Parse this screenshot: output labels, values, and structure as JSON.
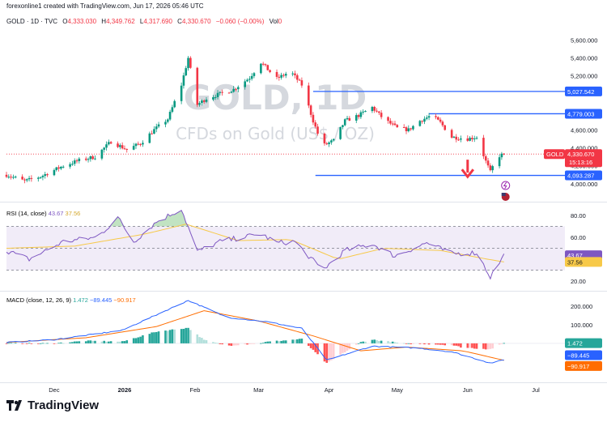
{
  "header": {
    "credit": "forexonline1 created with TradingView.com, Jun 17, 2026 05:46 UTC",
    "symbol": "GOLD · 1D · TVC",
    "open_label": "O",
    "open": "4,333.030",
    "high_label": "H",
    "high": "4,349.762",
    "low_label": "L",
    "low": "4,317.690",
    "close_label": "C",
    "close": "4,330.670",
    "change": "−0.060 (−0.00%)",
    "volume_label": "Vol",
    "volume": "0"
  },
  "watermark": {
    "title": "GOLD, 1D",
    "subtitle": "CFDs on Gold (US$ / OZ)"
  },
  "brand": {
    "logo_text": "TradingView"
  },
  "colors": {
    "up": "#089981",
    "down": "#f23645",
    "level": "#2962ff",
    "rsi": "#7e57c2",
    "rsi_ma": "#f7c948",
    "macd": "#2962ff",
    "signal": "#ff6d00",
    "badge_gold": "#f23645"
  },
  "chart_data": [
    {
      "type": "candlestick",
      "title": "GOLD, 1D",
      "x_axis": {
        "type": "date",
        "range": [
          "2025-11-10",
          "2026-07-01"
        ],
        "tick_labels": [
          {
            "date": "2025-12-01",
            "label": "Dec"
          },
          {
            "date": "2026-01-01",
            "label": "2026"
          },
          {
            "date": "2026-02-01",
            "label": "Feb"
          },
          {
            "date": "2026-03-01",
            "label": "Mar"
          },
          {
            "date": "2026-04-01",
            "label": "Apr"
          },
          {
            "date": "2026-05-01",
            "label": "May"
          },
          {
            "date": "2026-06-01",
            "label": "Jun"
          },
          {
            "date": "2026-07-01",
            "label": "Jul"
          }
        ]
      },
      "y_axis": {
        "range": [
          3900,
          5720
        ],
        "ticks": [
          {
            "value": 4000,
            "label": "4,000.000"
          },
          {
            "value": 4200,
            "label": "4,200.000"
          },
          {
            "value": 4400,
            "label": "4,400.000"
          },
          {
            "value": 4600,
            "label": "4,600.000"
          },
          {
            "value": 5200,
            "label": "5,200.000"
          },
          {
            "value": 5400,
            "label": "5,400.000"
          },
          {
            "value": 5600,
            "label": "5,600.000"
          }
        ]
      },
      "anchors": [
        [
          "2025-11-10",
          4100
        ],
        [
          "2025-11-18",
          4030
        ],
        [
          "2025-11-25",
          4080
        ],
        [
          "2025-12-05",
          4200
        ],
        [
          "2025-12-12",
          4260
        ],
        [
          "2025-12-19",
          4300
        ],
        [
          "2025-12-26",
          4470
        ],
        [
          "2026-01-02",
          4380
        ],
        [
          "2026-01-08",
          4450
        ],
        [
          "2026-01-14",
          4600
        ],
        [
          "2026-01-20",
          4720
        ],
        [
          "2026-01-26",
          5100
        ],
        [
          "2026-01-29",
          5400
        ],
        [
          "2026-02-02",
          4880
        ],
        [
          "2026-02-06",
          4950
        ],
        [
          "2026-02-12",
          5000
        ],
        [
          "2026-02-18",
          5050
        ],
        [
          "2026-02-25",
          5180
        ],
        [
          "2026-03-02",
          5350
        ],
        [
          "2026-03-09",
          5170
        ],
        [
          "2026-03-15",
          5250
        ],
        [
          "2026-03-20",
          5100
        ],
        [
          "2026-03-25",
          4700
        ],
        [
          "2026-03-29",
          4420
        ],
        [
          "2026-04-03",
          4480
        ],
        [
          "2026-04-08",
          4700
        ],
        [
          "2026-04-14",
          4760
        ],
        [
          "2026-04-20",
          4850
        ],
        [
          "2026-04-25",
          4720
        ],
        [
          "2026-05-01",
          4620
        ],
        [
          "2026-05-06",
          4600
        ],
        [
          "2026-05-11",
          4700
        ],
        [
          "2026-05-16",
          4760
        ],
        [
          "2026-05-20",
          4680
        ],
        [
          "2026-05-25",
          4520
        ],
        [
          "2026-06-01",
          4500
        ],
        [
          "2026-06-05",
          4520
        ],
        [
          "2026-06-09",
          4250
        ],
        [
          "2026-06-11",
          4130
        ],
        [
          "2026-06-14",
          4300
        ],
        [
          "2026-06-17",
          4330.67
        ]
      ],
      "levels": [
        {
          "value": 5027.542,
          "label": "5,027.542",
          "from": "2026-03-25"
        },
        {
          "value": 4779.003,
          "label": "4,779.003",
          "from": "2026-05-15"
        },
        {
          "value": 4093.287,
          "label": "4,093.287",
          "from": "2026-03-26"
        }
      ],
      "last_price": {
        "value": 4330.67,
        "label": "4,330.670",
        "countdown": "15:13:16",
        "symbol_tag": "GOLD"
      },
      "annotations": [
        {
          "type": "arrow-down",
          "date": "2026-06-01",
          "value": 4160
        }
      ]
    },
    {
      "type": "line",
      "title": "RSI (14, close)",
      "values_label": [
        "43.67",
        "37.56"
      ],
      "y_axis": {
        "range": [
          15,
          88
        ],
        "ticks": [
          {
            "value": 20,
            "label": "20.00"
          },
          {
            "value": 60,
            "label": "60.00"
          },
          {
            "value": 80,
            "label": "80.00"
          }
        ]
      },
      "bands": {
        "upper": 70,
        "middle": 50,
        "lower": 30
      },
      "series": [
        {
          "role": "rsi",
          "anchors": [
            [
              "2025-11-10",
              48
            ],
            [
              "2025-11-20",
              40
            ],
            [
              "2025-12-05",
              56
            ],
            [
              "2025-12-20",
              60
            ],
            [
              "2025-12-29",
              78
            ],
            [
              "2026-01-05",
              56
            ],
            [
              "2026-01-15",
              74
            ],
            [
              "2026-01-26",
              86
            ],
            [
              "2026-02-02",
              47
            ],
            [
              "2026-02-12",
              56
            ],
            [
              "2026-02-22",
              60
            ],
            [
              "2026-03-02",
              63
            ],
            [
              "2026-03-09",
              55
            ],
            [
              "2026-03-17",
              56
            ],
            [
              "2026-03-29",
              30
            ],
            [
              "2026-04-08",
              48
            ],
            [
              "2026-04-20",
              54
            ],
            [
              "2026-04-30",
              43
            ],
            [
              "2026-05-14",
              55
            ],
            [
              "2026-05-25",
              45
            ],
            [
              "2026-06-05",
              46
            ],
            [
              "2026-06-11",
              24
            ],
            [
              "2026-06-17",
              43.67
            ]
          ]
        },
        {
          "role": "rsi_ma",
          "anchors": [
            [
              "2025-11-10",
              50
            ],
            [
              "2025-12-10",
              52
            ],
            [
              "2026-01-10",
              63
            ],
            [
              "2026-01-28",
              72
            ],
            [
              "2026-02-20",
              57
            ],
            [
              "2026-03-15",
              58
            ],
            [
              "2026-04-05",
              40
            ],
            [
              "2026-04-25",
              50
            ],
            [
              "2026-05-20",
              48
            ],
            [
              "2026-06-10",
              40
            ],
            [
              "2026-06-17",
              37.56
            ]
          ]
        }
      ]
    },
    {
      "type": "bar",
      "title": "MACD (close, 12, 26, 9)",
      "values_label": [
        "1.472",
        "−89.445",
        "−90.917"
      ],
      "y_axis": {
        "range": [
          -200,
          260
        ],
        "ticks": [
          {
            "value": 100,
            "label": "100.000"
          },
          {
            "value": 200,
            "label": "200.000"
          }
        ]
      },
      "series": [
        {
          "role": "macd",
          "anchors": [
            [
              "2025-11-10",
              5
            ],
            [
              "2025-12-01",
              20
            ],
            [
              "2025-12-31",
              70
            ],
            [
              "2026-01-29",
              230
            ],
            [
              "2026-02-15",
              140
            ],
            [
              "2026-03-05",
              115
            ],
            [
              "2026-03-20",
              80
            ],
            [
              "2026-03-31",
              -90
            ],
            [
              "2026-04-20",
              -15
            ],
            [
              "2026-05-10",
              -25
            ],
            [
              "2026-05-25",
              -45
            ],
            [
              "2026-06-11",
              -105
            ],
            [
              "2026-06-17",
              -89.445
            ]
          ]
        },
        {
          "role": "signal",
          "anchors": [
            [
              "2025-11-10",
              5
            ],
            [
              "2025-12-15",
              30
            ],
            [
              "2026-01-15",
              90
            ],
            [
              "2026-02-05",
              175
            ],
            [
              "2026-03-01",
              120
            ],
            [
              "2026-03-25",
              40
            ],
            [
              "2026-04-15",
              -40
            ],
            [
              "2026-05-05",
              -20
            ],
            [
              "2026-05-30",
              -40
            ],
            [
              "2026-06-17",
              -90.917
            ]
          ]
        }
      ]
    }
  ]
}
